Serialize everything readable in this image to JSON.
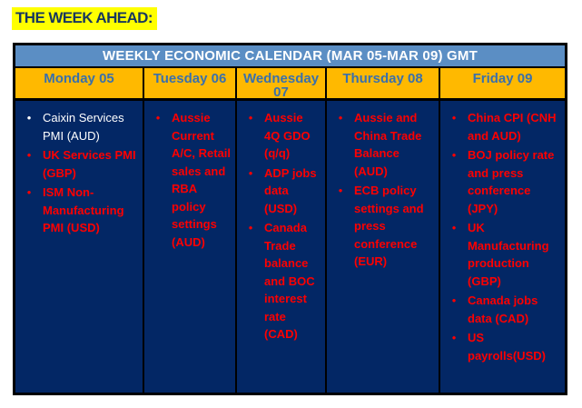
{
  "page_title": "THE WEEK AHEAD:",
  "icons": {
    "bullet": "•"
  },
  "colors": {
    "title_highlight": "#ffff00",
    "title_text": "#17375e",
    "header_band": "#5b8ec4",
    "header_text": "#ffffff",
    "day_header_bg": "#ffb900",
    "day_header_text": "#3a70ac",
    "body_bg": "#032765",
    "event_red": "#fe0000",
    "event_white": "#ffffff",
    "border": "#000000"
  },
  "table": {
    "header": "WEEKLY ECONOMIC CALENDAR (MAR 05-MAR 09) GMT",
    "columns": [
      {
        "label": "Monday 05",
        "items": [
          {
            "text": "Caixin Services PMI (AUD)",
            "color": "#ffffff",
            "weight": "normal"
          },
          {
            "text": "UK Services PMI (GBP)",
            "color": "#fe0000",
            "weight": "bold"
          },
          {
            "text": "ISM Non-Manufacturing PMI (USD)",
            "color": "#fe0000",
            "weight": "bold"
          }
        ]
      },
      {
        "label": "Tuesday 06",
        "items": [
          {
            "text": "Aussie Current A/C, Retail sales and RBA policy settings (AUD)",
            "color": "#fe0000",
            "weight": "bold"
          }
        ]
      },
      {
        "label": "Wednesday 07",
        "items": [
          {
            "text": "Aussie 4Q GDO (q/q)",
            "color": "#fe0000",
            "weight": "bold"
          },
          {
            "text": "ADP jobs data (USD)",
            "color": "#fe0000",
            "weight": "bold"
          },
          {
            "text": "Canada Trade balance and BOC interest rate (CAD)",
            "color": "#fe0000",
            "weight": "bold"
          }
        ]
      },
      {
        "label": "Thursday 08",
        "items": [
          {
            "text": "Aussie and China Trade Balance (AUD)",
            "color": "#fe0000",
            "weight": "bold"
          },
          {
            "text": "ECB policy settings and press conference (EUR)",
            "color": "#fe0000",
            "weight": "bold"
          }
        ]
      },
      {
        "label": "Friday 09",
        "items": [
          {
            "text": "China CPI (CNH and AUD)",
            "color": "#fe0000",
            "weight": "bold"
          },
          {
            "text": "BOJ policy rate and press conference (JPY)",
            "color": "#fe0000",
            "weight": "bold"
          },
          {
            "text": "UK Manufacturing production (GBP)",
            "color": "#fe0000",
            "weight": "bold"
          },
          {
            "text": "Canada jobs data (CAD)",
            "color": "#fe0000",
            "weight": "bold"
          },
          {
            "text": "US payrolls(USD)",
            "color": "#fe0000",
            "weight": "bold"
          }
        ]
      }
    ]
  }
}
